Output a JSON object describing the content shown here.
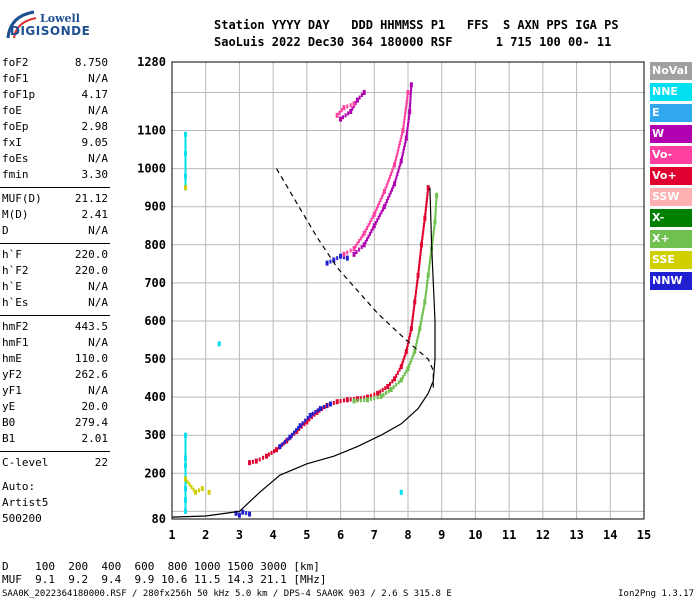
{
  "logo": {
    "line1": "Lowell",
    "line2": "DIGISONDE"
  },
  "header": {
    "line1": "Station YYYY DAY   DDD HHMMSS P1   FFS  S AXN PPS IGA PS",
    "line2": "SaoLuis 2022 Dec30 364 180000 RSF      1 715 100 00- 11"
  },
  "params": [
    {
      "name": "foF2",
      "value": "8.750"
    },
    {
      "name": "foF1",
      "value": "N/A"
    },
    {
      "name": "foF1p",
      "value": "4.17"
    },
    {
      "name": "foE",
      "value": "N/A"
    },
    {
      "name": "foEp",
      "value": "2.98"
    },
    {
      "name": "fxI",
      "value": "9.05"
    },
    {
      "name": "foEs",
      "value": "N/A"
    },
    {
      "name": "fmin",
      "value": "3.30"
    },
    {
      "name": "MUF(D)",
      "value": "21.12"
    },
    {
      "name": "M(D)",
      "value": "2.41"
    },
    {
      "name": "D",
      "value": "N/A"
    },
    {
      "name": "h`F",
      "value": "220.0"
    },
    {
      "name": "h`F2",
      "value": "220.0"
    },
    {
      "name": "h`E",
      "value": "N/A"
    },
    {
      "name": "h`Es",
      "value": "N/A"
    },
    {
      "name": "hmF2",
      "value": "443.5"
    },
    {
      "name": "hmF1",
      "value": "N/A"
    },
    {
      "name": "hmE",
      "value": "110.0"
    },
    {
      "name": "yF2",
      "value": "262.6"
    },
    {
      "name": "yF1",
      "value": "N/A"
    },
    {
      "name": "yE",
      "value": "20.0"
    },
    {
      "name": "B0",
      "value": "279.4"
    },
    {
      "name": "B1",
      "value": "2.01"
    },
    {
      "name": "C-level",
      "value": "22"
    }
  ],
  "auto": {
    "line1": "Auto:",
    "line2": "Artist5",
    "line3": "500200"
  },
  "legend": [
    {
      "label": "NoVal",
      "color": "#a0a0a0"
    },
    {
      "label": "NNE",
      "color": "#00e0f0"
    },
    {
      "label": "E",
      "color": "#30a8f0"
    },
    {
      "label": "W",
      "color": "#b000b0"
    },
    {
      "label": "Vo-",
      "color": "#ff40a0"
    },
    {
      "label": "Vo+",
      "color": "#e00030"
    },
    {
      "label": "SSW",
      "color": "#ffb0b0"
    },
    {
      "label": "X-",
      "color": "#008000"
    },
    {
      "label": "X+",
      "color": "#70c050"
    },
    {
      "label": "SSE",
      "color": "#d0d000"
    },
    {
      "label": "NNW",
      "color": "#2020d0"
    }
  ],
  "bottom": {
    "line1": "D    100  200  400  600  800 1000 1500 3000 [km]",
    "line2": "MUF  9.1  9.2  9.4  9.9 10.6 11.5 14.3 21.1 [MHz]"
  },
  "footer": {
    "left": "SAA0K_2022364180000.RSF / 280fx256h 50 kHz 5.0 km / DPS-4 SAA0K 903 / 2.6 S 315.8 E",
    "right": "Ion2Png 1.3.17"
  },
  "chart_data": {
    "type": "scatter",
    "x_ticks": [
      "1",
      "2",
      "3",
      "4",
      "5",
      "6",
      "7",
      "8",
      "9",
      "10",
      "11",
      "12",
      "13",
      "14",
      "15"
    ],
    "y_ticks": [
      "80",
      "200",
      "300",
      "400",
      "500",
      "600",
      "700",
      "800",
      "900",
      "1000",
      "1100",
      "1280"
    ],
    "xlim": [
      1,
      15
    ],
    "ylim": [
      80,
      1280
    ],
    "grid": true,
    "series": [
      {
        "name": "Vo-",
        "color": "#e00030",
        "points": [
          [
            3.3,
            228
          ],
          [
            3.5,
            232
          ],
          [
            3.8,
            245
          ],
          [
            4.1,
            262
          ],
          [
            4.4,
            285
          ],
          [
            4.7,
            310
          ],
          [
            5.0,
            335
          ],
          [
            5.3,
            360
          ],
          [
            5.6,
            378
          ],
          [
            5.9,
            388
          ],
          [
            6.2,
            393
          ],
          [
            6.5,
            396
          ],
          [
            6.8,
            400
          ],
          [
            7.1,
            410
          ],
          [
            7.4,
            428
          ],
          [
            7.6,
            448
          ],
          [
            7.8,
            480
          ],
          [
            7.95,
            520
          ],
          [
            8.1,
            580
          ],
          [
            8.2,
            650
          ],
          [
            8.3,
            720
          ],
          [
            8.4,
            800
          ],
          [
            8.5,
            870
          ],
          [
            8.6,
            950
          ]
        ]
      },
      {
        "name": "X+",
        "color": "#70c050",
        "points": [
          [
            6.4,
            390
          ],
          [
            6.8,
            393
          ],
          [
            7.2,
            402
          ],
          [
            7.5,
            420
          ],
          [
            7.8,
            445
          ],
          [
            8.0,
            475
          ],
          [
            8.2,
            520
          ],
          [
            8.35,
            580
          ],
          [
            8.5,
            650
          ],
          [
            8.6,
            720
          ],
          [
            8.7,
            790
          ],
          [
            8.8,
            860
          ],
          [
            8.85,
            930
          ]
        ]
      },
      {
        "name": "NNW",
        "color": "#2020d0",
        "points": [
          [
            4.2,
            270
          ],
          [
            4.5,
            295
          ],
          [
            4.8,
            325
          ],
          [
            5.1,
            352
          ],
          [
            5.4,
            370
          ],
          [
            5.7,
            382
          ],
          [
            6.2,
            765
          ],
          [
            6.0,
            770
          ],
          [
            5.8,
            760
          ],
          [
            5.6,
            752
          ],
          [
            2.9,
            95
          ],
          [
            3.0,
            90
          ],
          [
            3.1,
            98
          ],
          [
            3.3,
            93
          ]
        ]
      },
      {
        "name": "W",
        "color": "#b000b0",
        "points": [
          [
            6.4,
            775
          ],
          [
            6.7,
            800
          ],
          [
            7.0,
            850
          ],
          [
            7.3,
            900
          ],
          [
            7.6,
            960
          ],
          [
            7.8,
            1020
          ],
          [
            7.95,
            1080
          ],
          [
            8.05,
            1150
          ],
          [
            8.1,
            1220
          ],
          [
            6.0,
            1130
          ],
          [
            6.3,
            1150
          ],
          [
            6.5,
            1180
          ],
          [
            6.7,
            1200
          ]
        ]
      },
      {
        "name": "Vo+",
        "color": "#ff40a0",
        "points": [
          [
            6.1,
            775
          ],
          [
            6.4,
            790
          ],
          [
            6.7,
            830
          ],
          [
            7.0,
            880
          ],
          [
            7.3,
            940
          ],
          [
            7.6,
            1010
          ],
          [
            7.85,
            1100
          ],
          [
            8.0,
            1200
          ],
          [
            5.9,
            1140
          ],
          [
            6.1,
            1160
          ],
          [
            6.4,
            1170
          ]
        ]
      },
      {
        "name": "NNE",
        "color": "#00e0f0",
        "points": [
          [
            1.4,
            1090
          ],
          [
            1.4,
            1040
          ],
          [
            1.4,
            980
          ],
          [
            1.4,
            950
          ],
          [
            1.4,
            300
          ],
          [
            1.4,
            240
          ],
          [
            1.4,
            220
          ],
          [
            1.4,
            160
          ],
          [
            1.4,
            130
          ],
          [
            1.4,
            100
          ],
          [
            7.8,
            150
          ],
          [
            2.4,
            540
          ]
        ]
      },
      {
        "name": "SSE",
        "color": "#d0d000",
        "points": [
          [
            1.4,
            185
          ],
          [
            1.7,
            150
          ],
          [
            1.9,
            160
          ],
          [
            1.4,
            950
          ],
          [
            2.1,
            150
          ]
        ]
      },
      {
        "name": "hmF2 profile",
        "color": "#000000",
        "points": [
          [
            1.0,
            85
          ],
          [
            2.0,
            88
          ],
          [
            3.0,
            100
          ],
          [
            3.6,
            150
          ],
          [
            4.2,
            195
          ],
          [
            5.0,
            225
          ],
          [
            5.8,
            245
          ],
          [
            6.5,
            270
          ],
          [
            7.2,
            300
          ],
          [
            7.8,
            330
          ],
          [
            8.3,
            370
          ],
          [
            8.6,
            410
          ],
          [
            8.75,
            443
          ],
          [
            8.8,
            500
          ],
          [
            8.8,
            600
          ],
          [
            8.75,
            700
          ],
          [
            8.7,
            800
          ],
          [
            8.65,
            950
          ]
        ]
      },
      {
        "name": "dashed",
        "color": "#000000",
        "dashed": true,
        "points": [
          [
            4.1,
            1000
          ],
          [
            4.7,
            910
          ],
          [
            5.3,
            820
          ],
          [
            5.9,
            740
          ],
          [
            6.5,
            680
          ],
          [
            7.1,
            620
          ],
          [
            7.7,
            570
          ],
          [
            8.2,
            530
          ],
          [
            8.6,
            500
          ],
          [
            8.75,
            470
          ],
          [
            8.75,
            420
          ]
        ]
      }
    ]
  }
}
